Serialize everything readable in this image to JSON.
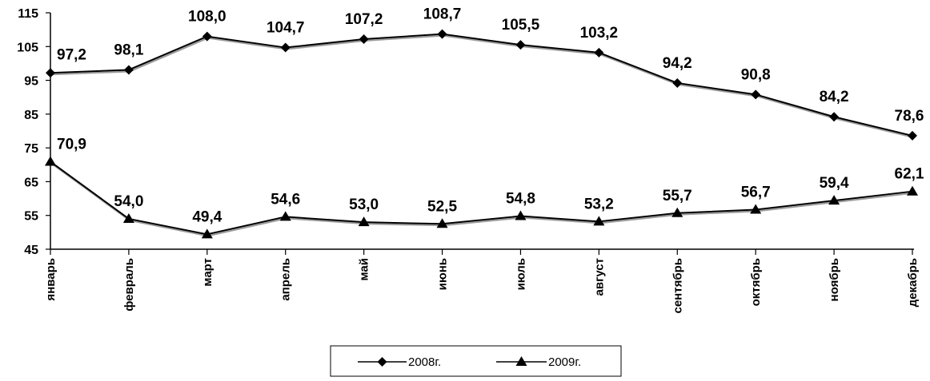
{
  "chart_data": {
    "type": "line",
    "categories": [
      "январь",
      "февраль",
      "март",
      "апрель",
      "май",
      "июнь",
      "июль",
      "август",
      "сентябрь",
      "октябрь",
      "ноябрь",
      "декабрь"
    ],
    "series": [
      {
        "name": "2008г.",
        "marker": "diamond",
        "values": [
          97.2,
          98.1,
          108.0,
          104.7,
          107.2,
          108.7,
          105.5,
          103.2,
          94.2,
          90.8,
          84.2,
          78.6
        ],
        "labels": [
          "97,2",
          "98,1",
          "108,0",
          "104,7",
          "107,2",
          "108,7",
          "105,5",
          "103,2",
          "94,2",
          "90,8",
          "84,2",
          "78,6"
        ]
      },
      {
        "name": "2009г.",
        "marker": "triangle",
        "values": [
          70.9,
          54.0,
          49.4,
          54.6,
          53.0,
          52.5,
          54.8,
          53.2,
          55.7,
          56.7,
          59.4,
          62.1
        ],
        "labels": [
          "70,9",
          "54,0",
          "49,4",
          "54,6",
          "53,0",
          "52,5",
          "54,8",
          "53,2",
          "55,7",
          "56,7",
          "59,4",
          "62,1"
        ]
      }
    ],
    "yticks": [
      45,
      55,
      65,
      75,
      85,
      95,
      105,
      115
    ],
    "ylim": [
      45,
      115
    ],
    "grid": false,
    "legend_position": "bottom",
    "line_color": "#000000"
  }
}
